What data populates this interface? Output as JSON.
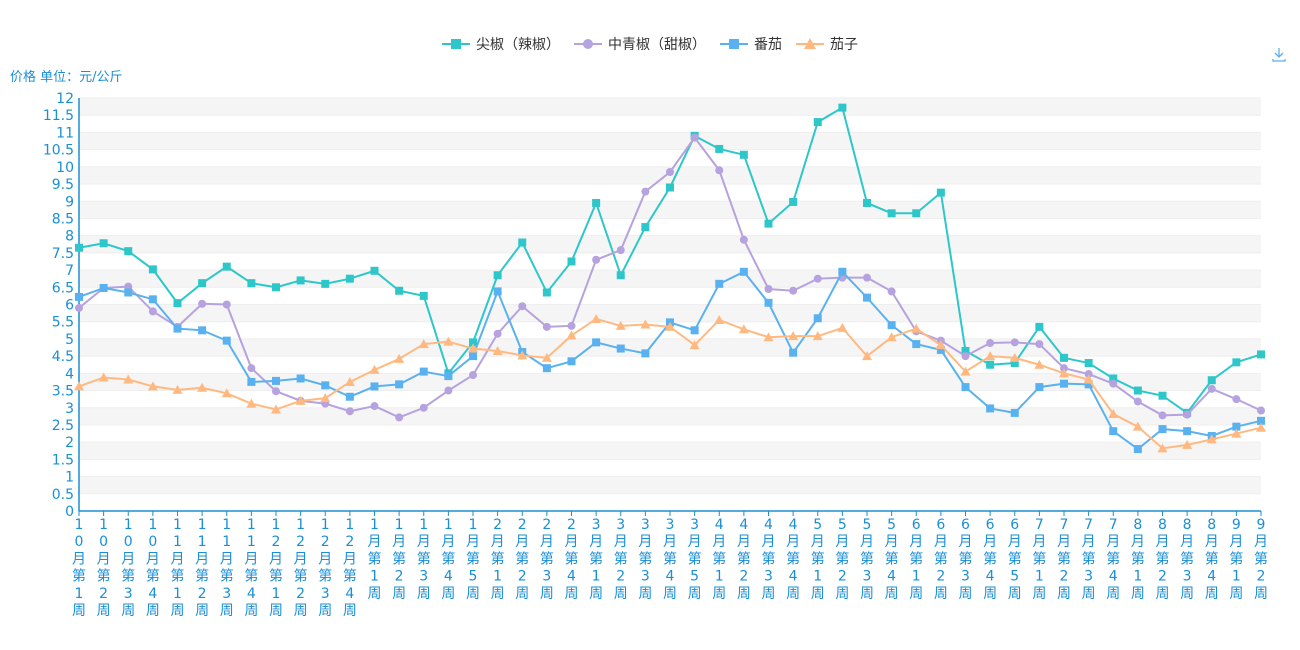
{
  "chart_data": {
    "type": "line",
    "ylabel": "价格 单位：元/公斤",
    "ylim": [
      0,
      12
    ],
    "ytick_step": 0.5,
    "grid": true,
    "legend_position": "top-center",
    "categories": [
      "10月第1周",
      "10月第2周",
      "10月第3周",
      "10月第4周",
      "11月第1周",
      "11月第2周",
      "11月第3周",
      "11月第4周",
      "12月第1周",
      "12月第2周",
      "12月第3周",
      "12月第4周",
      "1月第1周",
      "1月第2周",
      "1月第3周",
      "1月第4周",
      "1月第5周",
      "2月第1周",
      "2月第2周",
      "2月第3周",
      "2月第4周",
      "3月第1周",
      "3月第2周",
      "3月第3周",
      "3月第4周",
      "3月第5周",
      "4月第1周",
      "4月第2周",
      "4月第3周",
      "4月第4周",
      "5月第1周",
      "5月第2周",
      "5月第3周",
      "5月第4周",
      "6月第1周",
      "6月第2周",
      "6月第3周",
      "6月第4周",
      "6月第5周",
      "7月第1周",
      "7月第2周",
      "7月第3周",
      "7月第4周",
      "8月第1周",
      "8月第2周",
      "8月第3周",
      "8月第4周",
      "9月第1周",
      "9月第2周"
    ],
    "series": [
      {
        "name": "尖椒（辣椒）",
        "color": "#2ec7c9",
        "marker": "square",
        "values": [
          7.65,
          7.78,
          7.55,
          7.02,
          6.04,
          6.62,
          7.1,
          6.62,
          6.5,
          6.7,
          6.6,
          6.75,
          6.98,
          6.4,
          6.25,
          4.0,
          4.9,
          6.85,
          7.8,
          6.35,
          7.25,
          8.95,
          6.85,
          8.25,
          9.4,
          10.9,
          10.52,
          10.35,
          8.35,
          8.98,
          11.3,
          11.72,
          8.95,
          8.65,
          8.65,
          9.25,
          4.65,
          4.25,
          4.3,
          5.35,
          4.45,
          4.3,
          3.85,
          3.5,
          3.35,
          2.85,
          3.8,
          4.32,
          4.55
        ]
      },
      {
        "name": "中青椒（甜椒）",
        "color": "#b6a2de",
        "marker": "circle",
        "values": [
          5.9,
          6.48,
          6.52,
          5.8,
          5.35,
          6.02,
          6.0,
          4.15,
          3.48,
          3.2,
          3.12,
          2.9,
          3.05,
          2.72,
          3.0,
          3.5,
          3.95,
          5.15,
          5.95,
          5.35,
          5.38,
          7.3,
          7.58,
          9.28,
          9.85,
          10.85,
          9.9,
          7.88,
          6.45,
          6.4,
          6.75,
          6.78,
          6.78,
          6.38,
          5.22,
          4.95,
          4.5,
          4.88,
          4.9,
          4.85,
          4.15,
          3.98,
          3.7,
          3.18,
          2.78,
          2.8,
          3.55,
          3.25,
          2.92
        ]
      },
      {
        "name": "番茄",
        "color": "#5ab1ef",
        "marker": "square",
        "values": [
          6.22,
          6.48,
          6.35,
          6.15,
          5.3,
          5.25,
          4.95,
          3.75,
          3.78,
          3.85,
          3.65,
          3.32,
          3.62,
          3.68,
          4.05,
          3.92,
          4.5,
          6.38,
          4.62,
          4.15,
          4.35,
          4.9,
          4.72,
          4.58,
          5.48,
          5.25,
          6.6,
          6.95,
          6.05,
          4.6,
          5.6,
          6.95,
          6.2,
          5.4,
          4.85,
          4.68,
          3.6,
          2.98,
          2.85,
          3.6,
          3.7,
          3.68,
          2.32,
          1.8,
          2.38,
          2.32,
          2.18,
          2.45,
          2.62
        ]
      },
      {
        "name": "茄子",
        "color": "#ffb980",
        "marker": "triangle",
        "values": [
          3.62,
          3.88,
          3.82,
          3.62,
          3.52,
          3.58,
          3.42,
          3.12,
          2.95,
          3.2,
          3.28,
          3.75,
          4.1,
          4.42,
          4.85,
          4.92,
          4.72,
          4.65,
          4.52,
          4.45,
          5.1,
          5.58,
          5.38,
          5.42,
          5.35,
          4.82,
          5.55,
          5.28,
          5.05,
          5.08,
          5.08,
          5.32,
          4.5,
          5.05,
          5.3,
          4.82,
          4.05,
          4.5,
          4.45,
          4.25,
          4.0,
          3.82,
          2.82,
          2.45,
          1.82,
          1.92,
          2.08,
          2.25,
          2.42
        ]
      }
    ]
  },
  "toolbar": {
    "download_icon": "download-icon"
  }
}
